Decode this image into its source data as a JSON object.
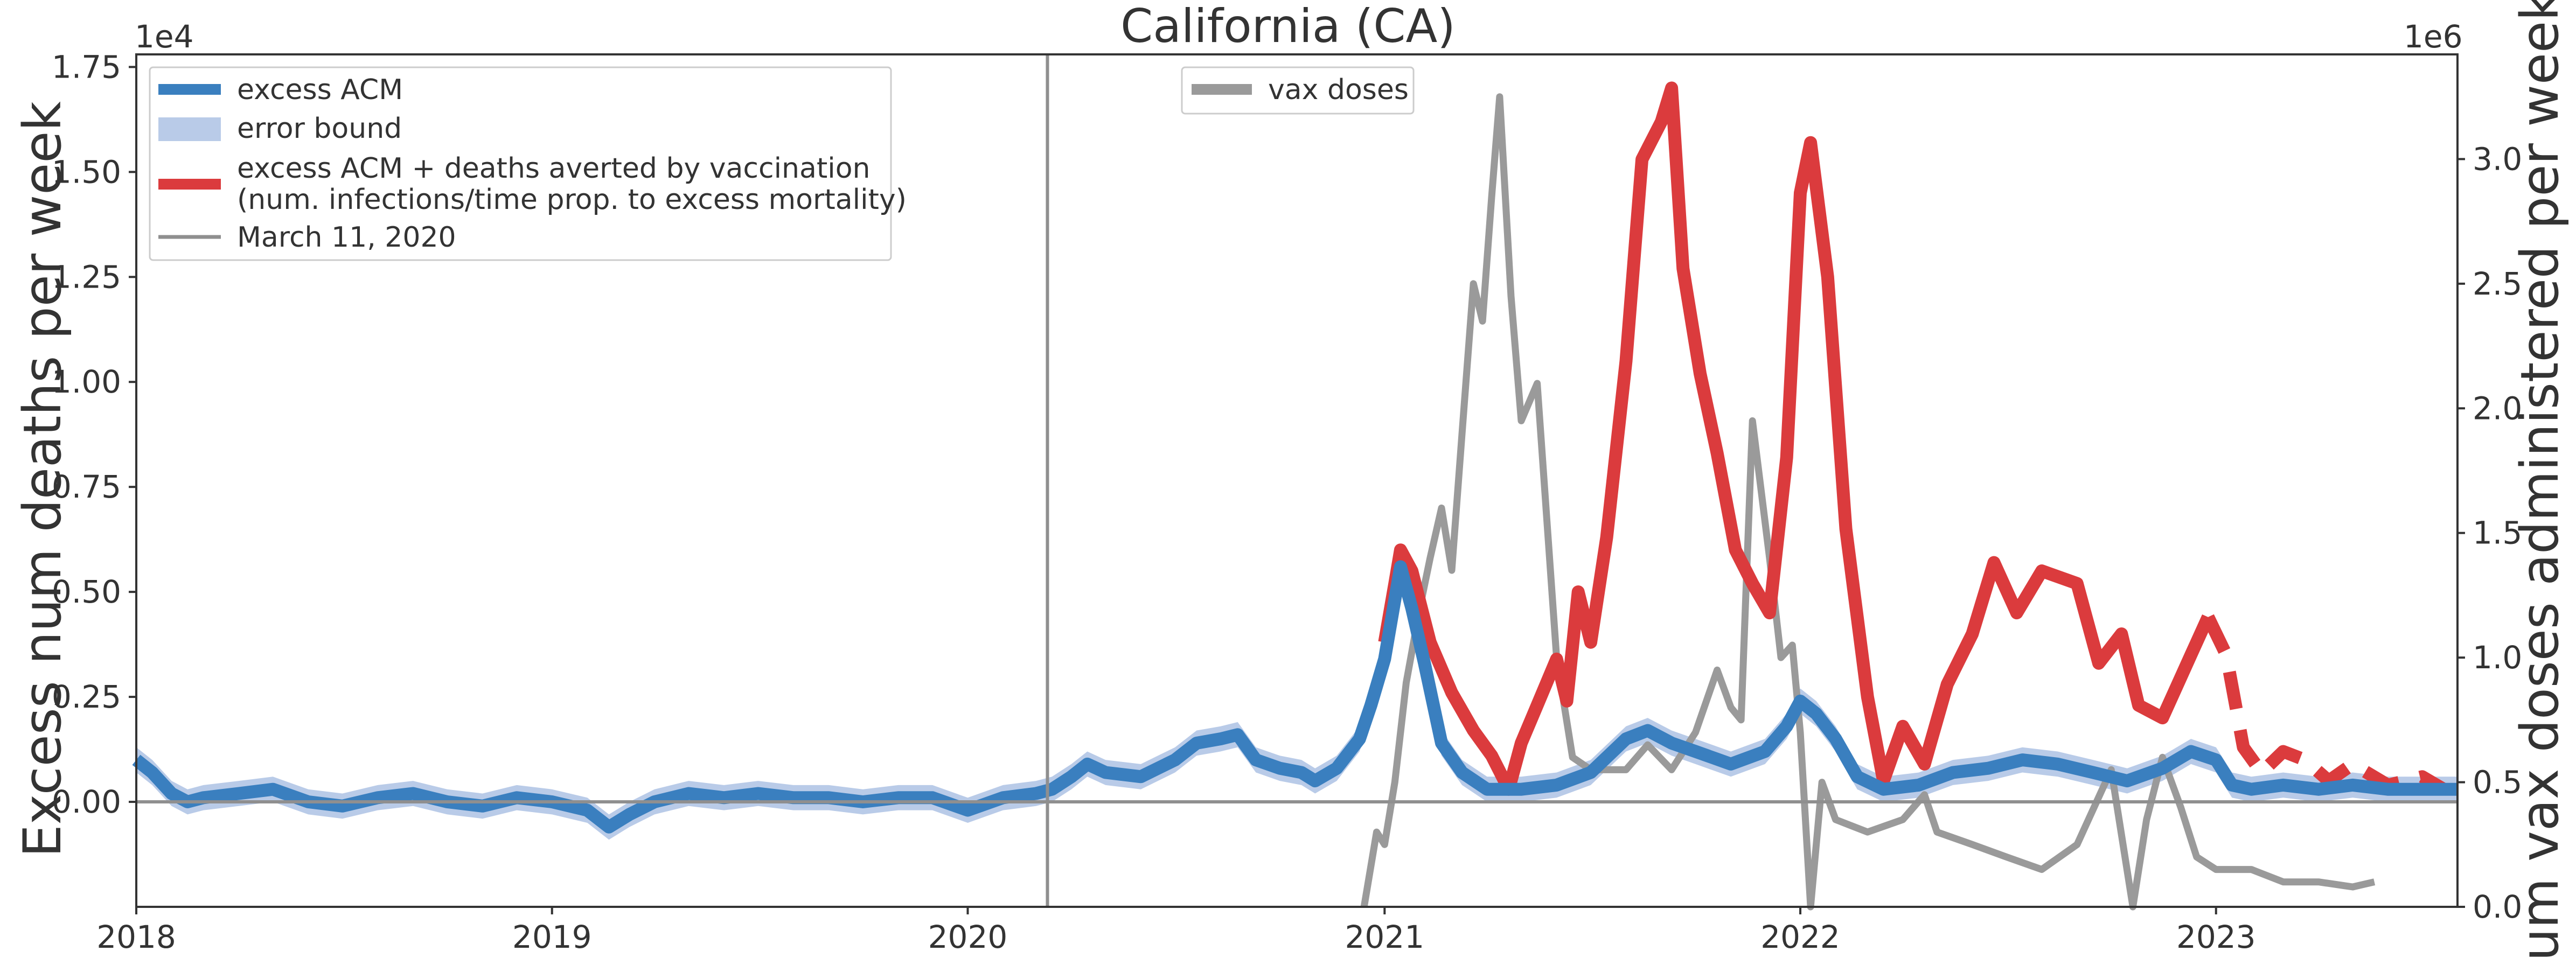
{
  "chart_data": {
    "type": "line",
    "title": "California (CA)",
    "xlabel": "",
    "ylabel_left": "Excess num deaths per week",
    "ylabel_right": "Num vax doses administered per week",
    "left_exponent": "1e4",
    "right_exponent": "1e6",
    "xlim": [
      "2018-01-01",
      "2023-08-01"
    ],
    "ylim_left": [
      -0.25,
      1.78
    ],
    "ylim_right": [
      0,
      3.42
    ],
    "x_ticks": [
      "2018",
      "2019",
      "2020",
      "2021",
      "2022",
      "2023"
    ],
    "y_ticks_left": [
      "0.00",
      "0.25",
      "0.50",
      "0.75",
      "1.00",
      "1.25",
      "1.50",
      "1.75"
    ],
    "y_ticks_right": [
      "0.0",
      "0.5",
      "1.0",
      "1.5",
      "2.0",
      "2.5",
      "3.0"
    ],
    "marker_date": "2020-03-11",
    "grid": false,
    "legend_left": {
      "placement": "top-left",
      "entries": [
        {
          "key": "excess_acm",
          "label": "excess ACM"
        },
        {
          "key": "error_bound",
          "label": "error bound"
        },
        {
          "key": "averted",
          "label": "excess ACM + deaths averted by vaccination",
          "label2": "(num. infections/time prop. to excess mortality)"
        },
        {
          "key": "march",
          "label": "March 11, 2020"
        }
      ]
    },
    "legend_right": {
      "placement": "top-center",
      "entries": [
        {
          "key": "vax",
          "label": "vax doses"
        }
      ]
    },
    "colors": {
      "excess_acm": "#3a7fbf",
      "error_bound": "#b9cbe8",
      "averted": "#db3b3d",
      "vax": "#9a9a9a",
      "march": "#8f8f8f",
      "zero_line": "#8f8f8f",
      "axes": "#333333"
    },
    "series": [
      {
        "name": "excess ACM",
        "key": "excess_acm",
        "axis": "left",
        "points": [
          [
            "2018-01-01",
            0.1
          ],
          [
            "2018-01-15",
            0.07
          ],
          [
            "2018-02-01",
            0.02
          ],
          [
            "2018-02-15",
            0.0
          ],
          [
            "2018-03-01",
            0.01
          ],
          [
            "2018-04-01",
            0.02
          ],
          [
            "2018-05-01",
            0.03
          ],
          [
            "2018-06-01",
            0.0
          ],
          [
            "2018-07-01",
            -0.01
          ],
          [
            "2018-08-01",
            0.01
          ],
          [
            "2018-09-01",
            0.02
          ],
          [
            "2018-10-01",
            0.0
          ],
          [
            "2018-11-01",
            -0.01
          ],
          [
            "2018-12-01",
            0.01
          ],
          [
            "2019-01-01",
            0.0
          ],
          [
            "2019-02-01",
            -0.02
          ],
          [
            "2019-02-20",
            -0.06
          ],
          [
            "2019-03-10",
            -0.03
          ],
          [
            "2019-04-01",
            0.0
          ],
          [
            "2019-05-01",
            0.02
          ],
          [
            "2019-06-01",
            0.01
          ],
          [
            "2019-07-01",
            0.02
          ],
          [
            "2019-08-01",
            0.01
          ],
          [
            "2019-09-01",
            0.01
          ],
          [
            "2019-10-01",
            0.0
          ],
          [
            "2019-11-01",
            0.01
          ],
          [
            "2019-12-01",
            0.01
          ],
          [
            "2020-01-01",
            -0.02
          ],
          [
            "2020-02-01",
            0.01
          ],
          [
            "2020-03-01",
            0.02
          ],
          [
            "2020-03-15",
            0.03
          ],
          [
            "2020-04-01",
            0.06
          ],
          [
            "2020-04-15",
            0.09
          ],
          [
            "2020-05-01",
            0.07
          ],
          [
            "2020-06-01",
            0.06
          ],
          [
            "2020-07-01",
            0.1
          ],
          [
            "2020-07-20",
            0.14
          ],
          [
            "2020-08-10",
            0.15
          ],
          [
            "2020-08-25",
            0.16
          ],
          [
            "2020-09-10",
            0.1
          ],
          [
            "2020-10-01",
            0.08
          ],
          [
            "2020-10-20",
            0.07
          ],
          [
            "2020-11-01",
            0.05
          ],
          [
            "2020-11-20",
            0.08
          ],
          [
            "2020-12-10",
            0.15
          ],
          [
            "2020-12-20",
            0.23
          ],
          [
            "2021-01-01",
            0.34
          ],
          [
            "2021-01-15",
            0.56
          ],
          [
            "2021-01-25",
            0.46
          ],
          [
            "2021-02-05",
            0.33
          ],
          [
            "2021-02-20",
            0.14
          ],
          [
            "2021-03-10",
            0.07
          ],
          [
            "2021-04-01",
            0.03
          ],
          [
            "2021-05-01",
            0.03
          ],
          [
            "2021-06-01",
            0.04
          ],
          [
            "2021-07-01",
            0.07
          ],
          [
            "2021-08-01",
            0.15
          ],
          [
            "2021-08-20",
            0.17
          ],
          [
            "2021-09-10",
            0.14
          ],
          [
            "2021-10-01",
            0.12
          ],
          [
            "2021-11-01",
            0.09
          ],
          [
            "2021-12-01",
            0.12
          ],
          [
            "2021-12-20",
            0.18
          ],
          [
            "2022-01-01",
            0.24
          ],
          [
            "2022-01-15",
            0.21
          ],
          [
            "2022-02-01",
            0.15
          ],
          [
            "2022-02-20",
            0.06
          ],
          [
            "2022-03-15",
            0.03
          ],
          [
            "2022-04-15",
            0.04
          ],
          [
            "2022-05-15",
            0.07
          ],
          [
            "2022-06-15",
            0.08
          ],
          [
            "2022-07-15",
            0.1
          ],
          [
            "2022-08-15",
            0.09
          ],
          [
            "2022-09-15",
            0.07
          ],
          [
            "2022-10-15",
            0.05
          ],
          [
            "2022-11-15",
            0.08
          ],
          [
            "2022-12-10",
            0.12
          ],
          [
            "2023-01-01",
            0.1
          ],
          [
            "2023-01-15",
            0.04
          ],
          [
            "2023-02-01",
            0.03
          ],
          [
            "2023-03-01",
            0.04
          ],
          [
            "2023-04-01",
            0.03
          ],
          [
            "2023-05-01",
            0.04
          ],
          [
            "2023-06-01",
            0.03
          ],
          [
            "2023-07-01",
            0.03
          ],
          [
            "2023-08-01",
            0.03
          ]
        ]
      },
      {
        "name": "error bound",
        "key": "error_bound",
        "axis": "left",
        "band_halfwidth": 0.03
      },
      {
        "name": "excess ACM + deaths averted by vaccination",
        "key": "averted",
        "axis": "left",
        "points": [
          [
            "2021-01-01",
            0.38
          ],
          [
            "2021-01-10",
            0.52
          ],
          [
            "2021-01-15",
            0.6
          ],
          [
            "2021-01-25",
            0.55
          ],
          [
            "2021-02-10",
            0.38
          ],
          [
            "2021-03-01",
            0.26
          ],
          [
            "2021-03-20",
            0.17
          ],
          [
            "2021-04-05",
            0.11
          ],
          [
            "2021-04-20",
            0.03
          ],
          [
            "2021-05-01",
            0.14
          ],
          [
            "2021-05-15",
            0.23
          ],
          [
            "2021-06-01",
            0.34
          ],
          [
            "2021-06-10",
            0.24
          ],
          [
            "2021-06-20",
            0.5
          ],
          [
            "2021-07-01",
            0.38
          ],
          [
            "2021-07-15",
            0.63
          ],
          [
            "2021-08-01",
            1.05
          ],
          [
            "2021-08-15",
            1.53
          ],
          [
            "2021-09-01",
            1.62
          ],
          [
            "2021-09-10",
            1.7
          ],
          [
            "2021-09-20",
            1.27
          ],
          [
            "2021-10-05",
            1.02
          ],
          [
            "2021-10-20",
            0.83
          ],
          [
            "2021-11-05",
            0.6
          ],
          [
            "2021-11-20",
            0.52
          ],
          [
            "2021-12-05",
            0.45
          ],
          [
            "2021-12-20",
            0.82
          ],
          [
            "2022-01-01",
            1.45
          ],
          [
            "2022-01-10",
            1.57
          ],
          [
            "2022-01-25",
            1.25
          ],
          [
            "2022-02-10",
            0.65
          ],
          [
            "2022-03-01",
            0.25
          ],
          [
            "2022-03-15",
            0.05
          ],
          [
            "2022-04-01",
            0.18
          ],
          [
            "2022-04-20",
            0.09
          ],
          [
            "2022-05-10",
            0.28
          ],
          [
            "2022-06-01",
            0.4
          ],
          [
            "2022-06-20",
            0.57
          ],
          [
            "2022-07-10",
            0.45
          ],
          [
            "2022-08-01",
            0.55
          ],
          [
            "2022-09-01",
            0.52
          ],
          [
            "2022-09-20",
            0.33
          ],
          [
            "2022-10-10",
            0.4
          ],
          [
            "2022-10-25",
            0.23
          ],
          [
            "2022-11-15",
            0.2
          ],
          [
            "2022-12-10",
            0.35
          ],
          [
            "2022-12-25",
            0.44
          ]
        ],
        "dashed_points": [
          [
            "2022-12-25",
            0.44
          ],
          [
            "2023-01-10",
            0.35
          ],
          [
            "2023-01-25",
            0.13
          ],
          [
            "2023-02-10",
            0.07
          ],
          [
            "2023-03-01",
            0.12
          ],
          [
            "2023-03-20",
            0.1
          ],
          [
            "2023-04-10",
            0.05
          ],
          [
            "2023-05-01",
            0.09
          ],
          [
            "2023-06-01",
            0.04
          ],
          [
            "2023-07-01",
            0.06
          ],
          [
            "2023-07-20",
            0.03
          ]
        ]
      },
      {
        "name": "vax doses",
        "key": "vax",
        "axis": "right",
        "points": [
          [
            "2020-12-14",
            0.0
          ],
          [
            "2020-12-25",
            0.3
          ],
          [
            "2021-01-01",
            0.25
          ],
          [
            "2021-01-10",
            0.5
          ],
          [
            "2021-01-20",
            0.9
          ],
          [
            "2021-02-01",
            1.2
          ],
          [
            "2021-02-10",
            1.4
          ],
          [
            "2021-02-20",
            1.6
          ],
          [
            "2021-03-01",
            1.35
          ],
          [
            "2021-03-10",
            1.9
          ],
          [
            "2021-03-20",
            2.5
          ],
          [
            "2021-03-28",
            2.35
          ],
          [
            "2021-04-05",
            2.85
          ],
          [
            "2021-04-12",
            3.25
          ],
          [
            "2021-04-22",
            2.45
          ],
          [
            "2021-05-01",
            1.95
          ],
          [
            "2021-05-15",
            2.1
          ],
          [
            "2021-06-01",
            1.0
          ],
          [
            "2021-06-15",
            0.6
          ],
          [
            "2021-07-01",
            0.55
          ],
          [
            "2021-08-01",
            0.55
          ],
          [
            "2021-08-20",
            0.65
          ],
          [
            "2021-09-10",
            0.55
          ],
          [
            "2021-10-01",
            0.7
          ],
          [
            "2021-10-20",
            0.95
          ],
          [
            "2021-11-01",
            0.8
          ],
          [
            "2021-11-10",
            0.75
          ],
          [
            "2021-11-20",
            1.95
          ],
          [
            "2021-12-05",
            1.4
          ],
          [
            "2021-12-15",
            1.0
          ],
          [
            "2021-12-25",
            1.05
          ],
          [
            "2022-01-01",
            0.7
          ],
          [
            "2022-01-10",
            0.0
          ],
          [
            "2022-01-20",
            0.5
          ],
          [
            "2022-02-01",
            0.35
          ],
          [
            "2022-03-01",
            0.3
          ],
          [
            "2022-04-01",
            0.35
          ],
          [
            "2022-04-20",
            0.45
          ],
          [
            "2022-05-01",
            0.3
          ],
          [
            "2022-06-01",
            0.25
          ],
          [
            "2022-07-01",
            0.2
          ],
          [
            "2022-08-01",
            0.15
          ],
          [
            "2022-09-01",
            0.25
          ],
          [
            "2022-10-01",
            0.55
          ],
          [
            "2022-10-20",
            0.0
          ],
          [
            "2022-11-01",
            0.35
          ],
          [
            "2022-11-15",
            0.6
          ],
          [
            "2022-12-01",
            0.4
          ],
          [
            "2022-12-15",
            0.2
          ],
          [
            "2023-01-01",
            0.15
          ],
          [
            "2023-02-01",
            0.15
          ],
          [
            "2023-03-01",
            0.1
          ],
          [
            "2023-04-01",
            0.1
          ],
          [
            "2023-05-01",
            0.08
          ],
          [
            "2023-05-20",
            0.1
          ]
        ]
      }
    ]
  }
}
